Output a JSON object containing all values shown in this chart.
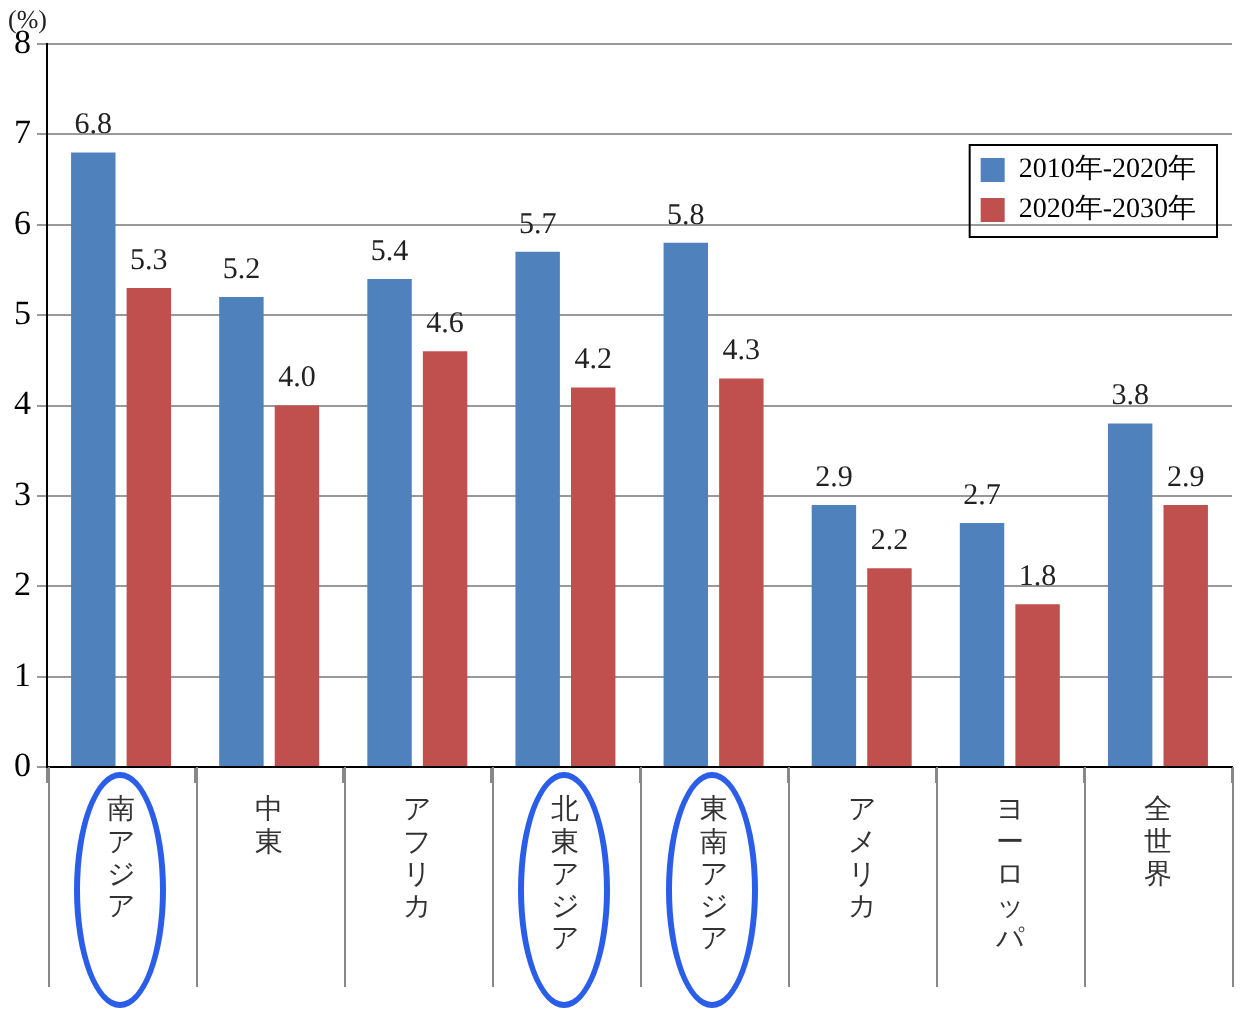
{
  "chart_data": {
    "type": "bar",
    "ylabel": "(%)",
    "categories": [
      "南アジア",
      "中東",
      "アフリカ",
      "北東アジア",
      "東南アジア",
      "アメリカ",
      "ヨーロッパ",
      "全世界"
    ],
    "series": [
      {
        "name": "2010年-2020年",
        "color": "#4f81bd",
        "values": [
          6.8,
          5.2,
          5.4,
          5.7,
          5.8,
          2.9,
          2.7,
          3.8
        ],
        "value_labels": [
          "6.8",
          "5.2",
          "5.4",
          "5.7",
          "5.8",
          "2.9",
          "2.7",
          "3.8"
        ]
      },
      {
        "name": "2020年-2030年",
        "color": "#c0504d",
        "values": [
          5.3,
          4.0,
          4.6,
          4.2,
          4.3,
          2.2,
          1.8,
          2.9
        ],
        "value_labels": [
          "5.3",
          "4.0",
          "4.6",
          "4.2",
          "4.3",
          "2.2",
          "1.8",
          "2.9"
        ]
      }
    ],
    "ylim": [
      0,
      8
    ],
    "yticks": [
      0,
      1,
      2,
      3,
      4,
      5,
      6,
      7,
      8
    ],
    "grid": "y",
    "legend": "top right"
  }
}
